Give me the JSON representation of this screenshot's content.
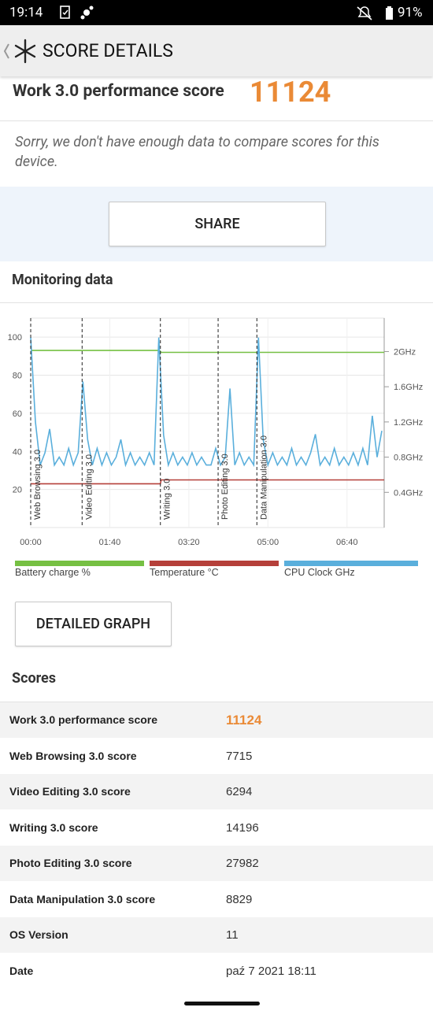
{
  "status_bar": {
    "time": "19:14",
    "battery": "91%"
  },
  "header": {
    "title": "SCORE DETAILS"
  },
  "summary": {
    "label": "Work 3.0 performance score",
    "score": "11124",
    "note": "Sorry, we don't have enough data to compare scores for this device."
  },
  "share_button": "SHARE",
  "monitoring": {
    "title": "Monitoring data",
    "chart": {
      "type": "line",
      "xlim": [
        0,
        447
      ],
      "xticks": [
        {
          "value": 0,
          "label": "00:00"
        },
        {
          "value": 100,
          "label": "01:40"
        },
        {
          "value": 200,
          "label": "03:20"
        },
        {
          "value": 300,
          "label": "05:00"
        },
        {
          "value": 400,
          "label": "06:40"
        }
      ],
      "ylim": [
        0,
        110
      ],
      "yticks": [
        20,
        40,
        60,
        80,
        100
      ],
      "y2lim": [
        0,
        2.38
      ],
      "y2ticks": [
        {
          "value": 0.4,
          "label": "0.4GHz"
        },
        {
          "value": 0.8,
          "label": "0.8GHz"
        },
        {
          "value": 1.2,
          "label": "1.2GHz"
        },
        {
          "value": 1.6,
          "label": "1.6GHz"
        },
        {
          "value": 2,
          "label": "2GHz"
        }
      ],
      "grid": true,
      "markers": [
        {
          "x": 0,
          "label": "Web Browsing 3.0"
        },
        {
          "x": 65,
          "label": "Video Editing 3.0"
        },
        {
          "x": 164,
          "label": "Writing 3.0"
        },
        {
          "x": 237,
          "label": "Photo Editing 3.0"
        },
        {
          "x": 286,
          "label": "Data Manipulation 3.0"
        }
      ],
      "series": [
        {
          "name": "Battery charge %",
          "color": "#76c043",
          "x": [
            0,
            163,
            165,
            447
          ],
          "values": [
            93,
            93,
            92,
            92
          ]
        },
        {
          "name": "Temperature °C",
          "color": "#b5403a",
          "x": [
            0,
            164,
            165,
            447
          ],
          "values": [
            23,
            23,
            25,
            25
          ]
        },
        {
          "name": "CPU Clock GHz",
          "color": "#5aafdc",
          "axis": "y2",
          "x": [
            0,
            6,
            12,
            18,
            24,
            30,
            36,
            42,
            48,
            54,
            60,
            66,
            72,
            78,
            84,
            90,
            96,
            102,
            108,
            114,
            120,
            126,
            132,
            138,
            144,
            150,
            156,
            162,
            168,
            174,
            180,
            186,
            192,
            198,
            204,
            210,
            216,
            222,
            228,
            234,
            240,
            246,
            252,
            258,
            264,
            270,
            276,
            282,
            288,
            294,
            300,
            306,
            312,
            318,
            324,
            330,
            336,
            342,
            348,
            354,
            360,
            366,
            372,
            378,
            384,
            390,
            396,
            402,
            408,
            414,
            420,
            426,
            432,
            438,
            444
          ],
          "values": [
            2.16,
            1.2,
            0.71,
            0.85,
            1.12,
            0.71,
            0.8,
            0.71,
            0.9,
            0.71,
            0.85,
            1.66,
            1.0,
            0.71,
            0.9,
            0.71,
            0.85,
            0.71,
            0.8,
            1.0,
            0.71,
            0.85,
            0.71,
            0.8,
            0.71,
            0.85,
            0.71,
            2.16,
            1.05,
            0.71,
            0.85,
            0.71,
            0.8,
            0.71,
            0.85,
            0.71,
            0.8,
            0.71,
            0.71,
            0.9,
            0.71,
            0.8,
            1.58,
            0.71,
            0.85,
            0.71,
            0.8,
            0.71,
            2.16,
            1.0,
            0.71,
            0.85,
            0.71,
            0.8,
            0.71,
            0.9,
            0.71,
            0.8,
            0.71,
            0.85,
            1.06,
            0.71,
            0.8,
            0.71,
            0.9,
            0.71,
            0.8,
            0.71,
            0.85,
            0.71,
            0.9,
            0.71,
            1.27,
            0.8,
            1.1
          ]
        }
      ]
    },
    "detailed_button": "DETAILED GRAPH"
  },
  "scores": {
    "title": "Scores",
    "rows": [
      [
        "Work 3.0 performance score",
        "11124"
      ],
      [
        "Web Browsing 3.0 score",
        "7715"
      ],
      [
        "Video Editing 3.0 score",
        "6294"
      ],
      [
        "Writing 3.0 score",
        "14196"
      ],
      [
        "Photo Editing 3.0 score",
        "27982"
      ],
      [
        "Data Manipulation 3.0 score",
        "8829"
      ],
      [
        "OS Version",
        "11"
      ],
      [
        "Date",
        "paź 7 2021 18:11"
      ]
    ]
  }
}
